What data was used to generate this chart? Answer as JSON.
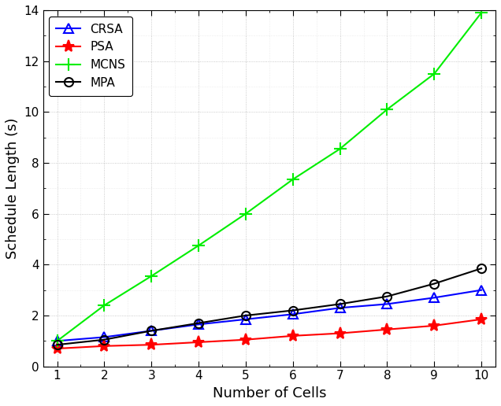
{
  "x": [
    1,
    2,
    3,
    4,
    5,
    6,
    7,
    8,
    9,
    10
  ],
  "CRSA": [
    1.0,
    1.15,
    1.4,
    1.65,
    1.85,
    2.05,
    2.3,
    2.45,
    2.7,
    3.0
  ],
  "PSA": [
    0.7,
    0.8,
    0.85,
    0.95,
    1.05,
    1.2,
    1.3,
    1.45,
    1.6,
    1.85
  ],
  "MCNS": [
    1.0,
    2.4,
    3.55,
    4.75,
    6.0,
    7.35,
    8.55,
    10.1,
    11.5,
    13.9
  ],
  "MPA": [
    0.85,
    1.05,
    1.4,
    1.7,
    2.0,
    2.2,
    2.45,
    2.75,
    3.25,
    3.85
  ],
  "colors": {
    "CRSA": "#0000FF",
    "PSA": "#FF0000",
    "MCNS": "#00EE00",
    "MPA": "#000000"
  },
  "markers": {
    "CRSA": "^",
    "PSA": "*",
    "MCNS": "+",
    "MPA": "o"
  },
  "marker_sizes": {
    "CRSA": 8,
    "PSA": 11,
    "MCNS": 12,
    "MPA": 8
  },
  "xlabel": "Number of Cells",
  "ylabel": "Schedule Length (s)",
  "xlim": [
    0.7,
    10.3
  ],
  "ylim": [
    0,
    14
  ],
  "yticks": [
    0,
    2,
    4,
    6,
    8,
    10,
    12,
    14
  ],
  "xticks": [
    1,
    2,
    3,
    4,
    5,
    6,
    7,
    8,
    9,
    10
  ],
  "legend_loc": "upper left",
  "figsize": [
    6.36,
    5.16
  ],
  "dpi": 100,
  "background_color": "#ffffff",
  "grid_color": "#aaaaaa",
  "minor_grid_color": "#cccccc"
}
